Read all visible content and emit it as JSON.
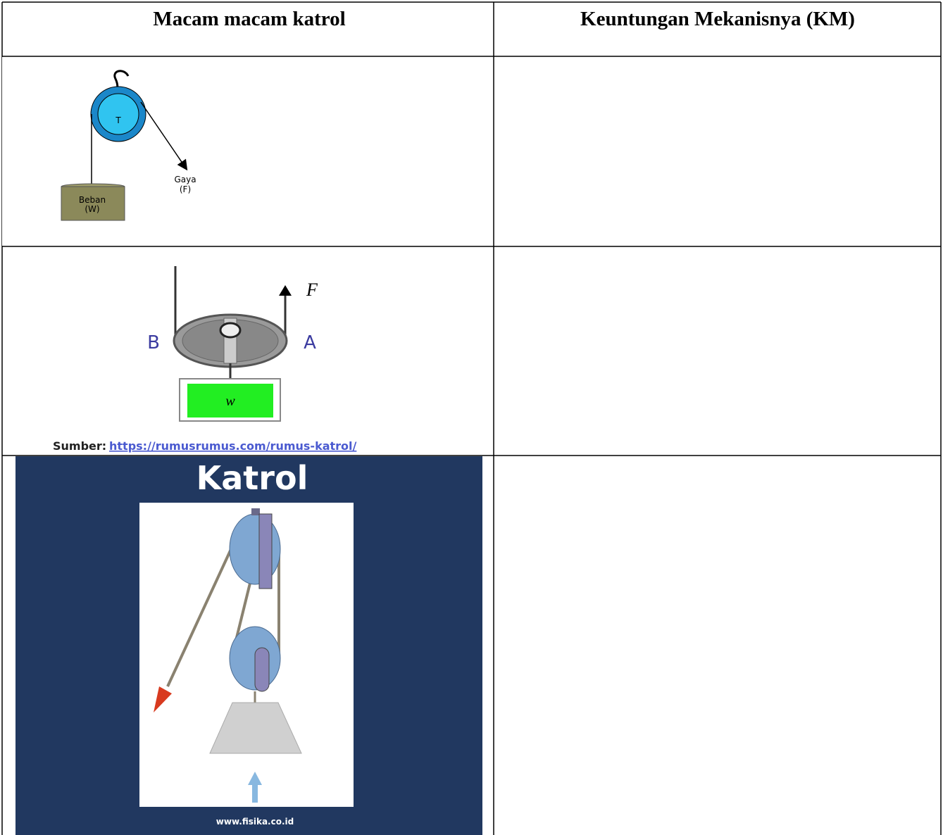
{
  "table": {
    "headers": [
      "Macam macam katrol",
      "Keuntungan Mekanisnya (KM)"
    ],
    "rows": [
      {
        "diagram": {
          "pulley_label": "T",
          "force_label": [
            "Gaya",
            "(F)"
          ],
          "load_label": [
            "Beban",
            "(W)"
          ]
        }
      },
      {
        "diagram": {
          "force_label": "F",
          "left_label": "B",
          "right_label": "A",
          "load_label": "w",
          "source_prefix": "Sumber:",
          "source_url": "https://rumusrumus.com/rumus-katrol/"
        }
      },
      {
        "diagram": {
          "title": "Katrol",
          "credit": "www.fisika.co.id"
        }
      }
    ]
  }
}
